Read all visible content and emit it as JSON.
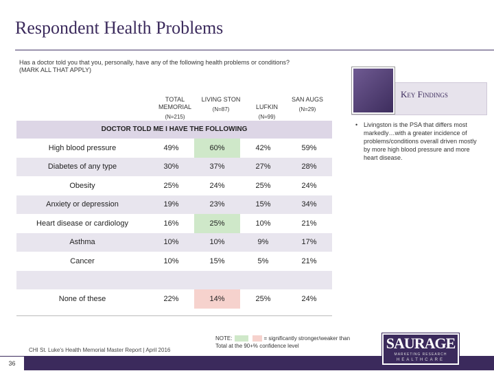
{
  "title": "Respondent Health Problems",
  "question": "Has a doctor told you that you, personally, have any of the following health problems or conditions? (MARK ALL THAT APPLY)",
  "columns": [
    {
      "label": "TOTAL MEMORIAL",
      "n": "(N=215)"
    },
    {
      "label": "LIVING STON",
      "n": "(N=87)"
    },
    {
      "label": "LUFKIN",
      "n": "(N=99)"
    },
    {
      "label": "SAN AUGS",
      "n": "(N=29)"
    }
  ],
  "section_title": "DOCTOR TOLD ME I HAVE THE FOLLOWING",
  "rows": [
    {
      "label": "High blood pressure",
      "values": [
        "49%",
        "60%",
        "42%",
        "59%"
      ],
      "highlight": [
        "",
        "green",
        "",
        ""
      ]
    },
    {
      "label": "Diabetes of any type",
      "values": [
        "30%",
        "37%",
        "27%",
        "28%"
      ],
      "highlight": [
        "",
        "",
        "",
        ""
      ]
    },
    {
      "label": "Obesity",
      "values": [
        "25%",
        "24%",
        "25%",
        "24%"
      ],
      "highlight": [
        "",
        "",
        "",
        ""
      ]
    },
    {
      "label": "Anxiety or depression",
      "values": [
        "19%",
        "23%",
        "15%",
        "34%"
      ],
      "highlight": [
        "",
        "",
        "",
        ""
      ]
    },
    {
      "label": "Heart disease or cardiology",
      "values": [
        "16%",
        "25%",
        "10%",
        "21%"
      ],
      "highlight": [
        "",
        "green",
        "",
        ""
      ]
    },
    {
      "label": "Asthma",
      "values": [
        "10%",
        "10%",
        "9%",
        "17%"
      ],
      "highlight": [
        "",
        "",
        "",
        ""
      ]
    },
    {
      "label": "Cancer",
      "values": [
        "10%",
        "15%",
        "5%",
        "21%"
      ],
      "highlight": [
        "",
        "",
        "",
        ""
      ]
    },
    {
      "label": "",
      "values": [
        "",
        "",
        "",
        ""
      ],
      "highlight": [
        "",
        "",
        "",
        ""
      ]
    },
    {
      "label": "None of these",
      "values": [
        "22%",
        "14%",
        "25%",
        "24%"
      ],
      "highlight": [
        "",
        "pink",
        "",
        ""
      ]
    }
  ],
  "key_findings": {
    "title": "Key Findings",
    "bullet": "Livingston is the PSA that differs most markedly…with a greater incidence of problems/conditions overall driven mostly by more high blood pressure and more heart disease."
  },
  "note": {
    "prefix": "NOTE:",
    "suffix": "= significantly stronger/weaker than Total at the 90+% confidence level"
  },
  "footer": "CHI St. Luke's Health Memorial Master Report | April 2016",
  "page_number": "36",
  "logo": {
    "name": "SAURAGE",
    "tagline": "MARKETING RESEARCH",
    "sub": "HEALTHCARE"
  },
  "colors": {
    "significant_higher": "#cfe8c9",
    "significant_lower": "#f6d2cd",
    "brand": "#3b2a5c"
  }
}
